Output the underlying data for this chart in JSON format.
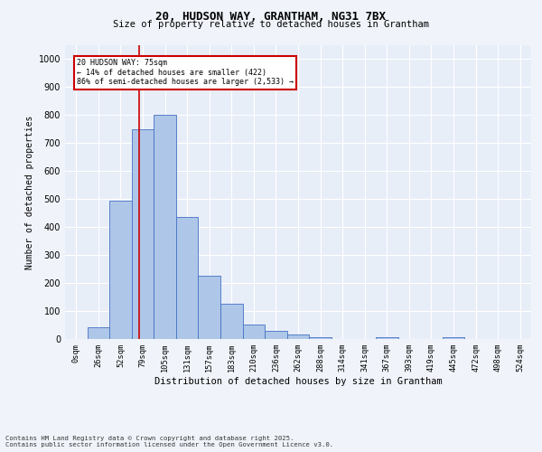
{
  "title_line1": "20, HUDSON WAY, GRANTHAM, NG31 7BX",
  "title_line2": "Size of property relative to detached houses in Grantham",
  "xlabel": "Distribution of detached houses by size in Grantham",
  "ylabel": "Number of detached properties",
  "bar_labels": [
    "0sqm",
    "26sqm",
    "52sqm",
    "79sqm",
    "105sqm",
    "131sqm",
    "157sqm",
    "183sqm",
    "210sqm",
    "236sqm",
    "262sqm",
    "288sqm",
    "314sqm",
    "341sqm",
    "367sqm",
    "393sqm",
    "419sqm",
    "445sqm",
    "472sqm",
    "498sqm",
    "524sqm"
  ],
  "bar_values": [
    0,
    42,
    495,
    750,
    800,
    437,
    225,
    127,
    52,
    28,
    16,
    8,
    0,
    0,
    5,
    0,
    0,
    5,
    0,
    0,
    0
  ],
  "bar_color": "#aec6e8",
  "bar_edge_color": "#4472c4",
  "ylim": [
    0,
    1050
  ],
  "yticks": [
    0,
    100,
    200,
    300,
    400,
    500,
    600,
    700,
    800,
    900,
    1000
  ],
  "annotation_text_line1": "20 HUDSON WAY: 75sqm",
  "annotation_text_line2": "← 14% of detached houses are smaller (422)",
  "annotation_text_line3": "86% of semi-detached houses are larger (2,533) →",
  "annotation_box_color": "#ffffff",
  "annotation_box_edge_color": "#cc0000",
  "vline_color": "#cc0000",
  "footer_line1": "Contains HM Land Registry data © Crown copyright and database right 2025.",
  "footer_line2": "Contains public sector information licensed under the Open Government Licence v3.0.",
  "bg_color": "#f0f4fa",
  "plot_bg_color": "#e8eef8",
  "grid_color": "#ffffff"
}
